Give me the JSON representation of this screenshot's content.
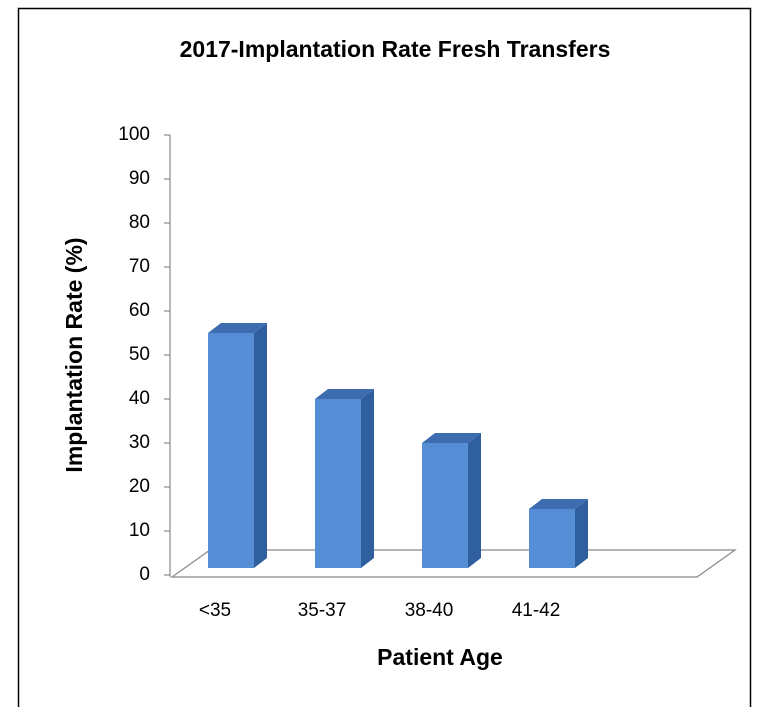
{
  "chart_data": {
    "type": "bar",
    "title": "2017-Implantation Rate  Fresh Transfers",
    "x_label": "Patient Age",
    "y_label": "Implantation Rate (%)",
    "categories": [
      "<35",
      "35-37",
      "38-40",
      "41-42"
    ],
    "values": [
      55,
      40,
      30,
      15
    ],
    "color": "#558ed5",
    "ylim": [
      0,
      100
    ],
    "yticks": [
      0,
      10,
      20,
      30,
      40,
      50,
      60,
      70,
      80,
      90,
      100
    ],
    "grid": false
  }
}
